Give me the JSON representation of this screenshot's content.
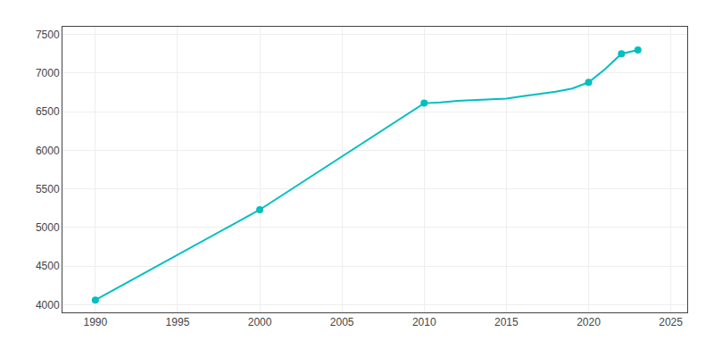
{
  "chart_data": {
    "type": "line",
    "series": [
      {
        "type": "line",
        "color": "#00BFBF",
        "line_style": "solid",
        "x": [
          1990,
          2000,
          2010,
          2011,
          2012,
          2013,
          2014,
          2015,
          2016,
          2017,
          2018,
          2019,
          2020,
          2021,
          2022,
          2023
        ],
        "values": [
          4060,
          5230,
          6610,
          6620,
          6640,
          6650,
          6660,
          6670,
          6700,
          6730,
          6760,
          6800,
          6880,
          7050,
          7250,
          7300
        ]
      },
      {
        "type": "scatter",
        "color": "#00BFBF",
        "marker": "circle",
        "x": [
          1990,
          2000,
          2010,
          2020,
          2022,
          2023
        ],
        "values": [
          4060,
          5230,
          6610,
          6880,
          7250,
          7300
        ]
      }
    ],
    "xlim": [
      1988,
      2026
    ],
    "ylim": [
      3900,
      7600
    ],
    "xticks": [
      1990,
      1995,
      2000,
      2005,
      2010,
      2015,
      2020,
      2025
    ],
    "yticks": [
      4000,
      4500,
      5000,
      5500,
      6000,
      6500,
      7000,
      7500
    ],
    "grid": true
  }
}
